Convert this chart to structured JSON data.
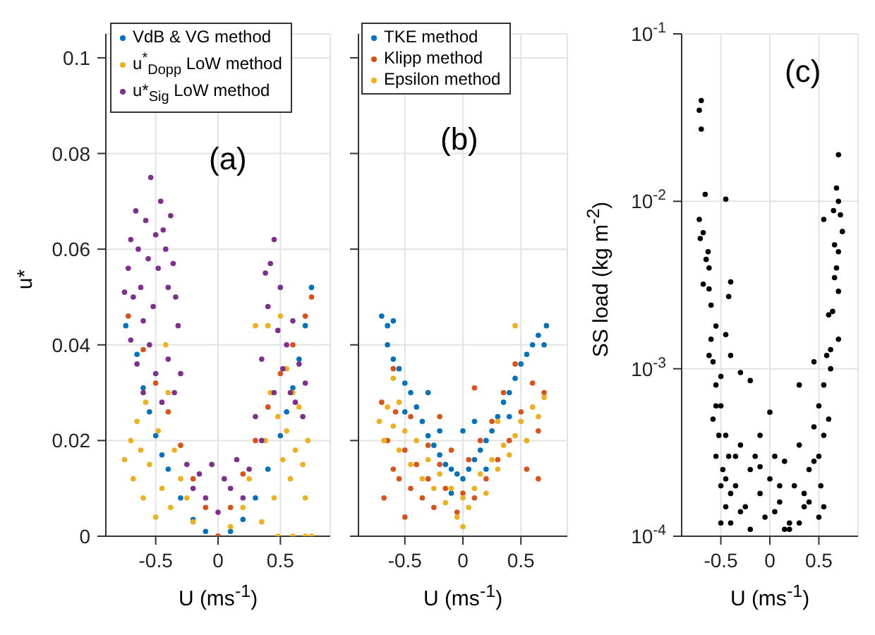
{
  "chart_data": [
    {
      "type": "scatter",
      "xlabel": "U (ms$^{-1}$)",
      "ylabel": "u*",
      "xlim": [
        -0.9,
        0.9
      ],
      "xticks": [
        -0.5,
        0,
        0.5
      ],
      "ylim": [
        0,
        0.105
      ],
      "yticks": [
        0,
        0.02,
        0.04,
        0.06,
        0.08,
        0.1
      ],
      "grid": true,
      "legend": "top left",
      "marker": "circle",
      "annotations": [
        "(a)"
      ],
      "series": [
        {
          "name": "VdB & VG method",
          "color": "#0072bd",
          "x": [
            -0.74,
            -0.65,
            -0.6,
            -0.55,
            -0.5,
            -0.45,
            -0.4,
            -0.3,
            -0.2,
            -0.1,
            0,
            0.1,
            0.2,
            0.3,
            0.4,
            0.5,
            0.55,
            0.6,
            0.65,
            0.7,
            0.75
          ],
          "values": [
            0.044,
            0.038,
            0.031,
            0.026,
            0.021,
            0.017,
            0.014,
            0.008,
            0.0035,
            0.001,
            0,
            0.001,
            0.0035,
            0.008,
            0.014,
            0.021,
            0.026,
            0.031,
            0.037,
            0.044,
            0.052
          ]
        },
        {
          "color": "#d95319",
          "x": [
            -0.72,
            -0.6,
            -0.5,
            -0.4,
            -0.3,
            -0.2,
            -0.1,
            0,
            0.1,
            0.2,
            0.3,
            0.4,
            0.5,
            0.6,
            0.7,
            0.75
          ],
          "values": [
            0.046,
            0.039,
            0.032,
            0.026,
            0.019,
            0.012,
            0.006,
            0,
            0.006,
            0.013,
            0.02,
            0.027,
            0.034,
            0.04,
            0.046,
            0.05
          ]
        },
        {
          "name": "u$^{*}$$_{Dopp}$ LoW method",
          "color": "#edb120",
          "x": [
            -0.75,
            -0.7,
            -0.68,
            -0.65,
            -0.62,
            -0.6,
            -0.58,
            -0.55,
            -0.5,
            -0.48,
            -0.45,
            -0.42,
            -0.4,
            -0.38,
            -0.35,
            -0.3,
            -0.25,
            -0.2,
            0.1,
            0.2,
            0.25,
            0.3,
            0.35,
            0.38,
            0.4,
            0.42,
            0.45,
            0.48,
            0.5,
            0.52,
            0.55,
            0.58,
            0.6,
            0.62,
            0.65,
            0.68,
            0.7,
            0.72,
            0.48,
            0.6,
            0.7,
            0.75,
            0.55
          ],
          "values": [
            0.016,
            0.02,
            0.012,
            0.024,
            0.018,
            0.008,
            0.028,
            0.015,
            0.004,
            0.022,
            0.01,
            0.04,
            0.03,
            0.006,
            0.018,
            0.012,
            0.008,
            0.003,
            0.002,
            0.006,
            0.012,
            0.044,
            0.003,
            0.02,
            0.044,
            0.03,
            0.008,
            0.025,
            0.046,
            0.016,
            0.022,
            0.012,
            0.03,
            0.018,
            0.027,
            0.015,
            0.008,
            0.02,
            0,
            0,
            0,
            0,
            0.035
          ]
        },
        {
          "name": "u*$_{Sig}$ LoW method",
          "color": "#7e2f8e",
          "x": [
            -0.75,
            -0.72,
            -0.7,
            -0.68,
            -0.66,
            -0.64,
            -0.62,
            -0.6,
            -0.58,
            -0.56,
            -0.54,
            -0.52,
            -0.5,
            -0.48,
            -0.46,
            -0.44,
            -0.42,
            -0.4,
            -0.38,
            -0.36,
            -0.34,
            -0.32,
            -0.7,
            -0.65,
            -0.6,
            -0.55,
            -0.5,
            -0.45,
            -0.4,
            -0.35,
            -0.3,
            -0.25,
            -0.2,
            -0.15,
            -0.1,
            -0.05,
            0,
            0.05,
            0.1,
            0.15,
            0.2,
            0.25,
            0.3,
            0.35,
            0.38,
            0.4,
            0.42,
            0.45,
            0.48,
            0.5,
            0.52,
            0.55,
            0.58,
            0.6,
            0.62,
            0.65,
            0.68,
            0.7,
            0.45,
            0.35
          ],
          "values": [
            0.051,
            0.056,
            0.062,
            0.05,
            0.068,
            0.06,
            0.052,
            0.045,
            0.066,
            0.058,
            0.075,
            0.048,
            0.063,
            0.056,
            0.07,
            0.064,
            0.06,
            0.052,
            0.067,
            0.057,
            0.05,
            0.044,
            0.041,
            0.036,
            0.03,
            0.04,
            0.034,
            0.028,
            0.037,
            0.03,
            0.034,
            0.015,
            0.01,
            0.013,
            0.008,
            0.015,
            0.005,
            0.012,
            0.01,
            0.016,
            0.008,
            0.014,
            0.025,
            0.037,
            0.055,
            0.048,
            0.057,
            0.062,
            0.043,
            0.052,
            0.035,
            0.04,
            0.03,
            0.045,
            0.028,
            0.036,
            0.025,
            0.032,
            0.03,
            0.02
          ]
        }
      ]
    },
    {
      "type": "scatter",
      "xlabel": "U (ms$^{-1}$)",
      "xlim": [
        -0.9,
        0.9
      ],
      "xticks": [
        -0.5,
        0,
        0.5
      ],
      "ylim": [
        0,
        0.105
      ],
      "yticks": [
        0,
        0.02,
        0.04,
        0.06,
        0.08,
        0.1
      ],
      "tick_labels": "x",
      "grid": true,
      "legend": "top left",
      "marker": "circle",
      "annotations": [
        "(b)"
      ],
      "series": [
        {
          "name": "TKE method",
          "color": "#0072bd",
          "x": [
            -0.7,
            -0.65,
            -0.6,
            -0.65,
            -0.6,
            -0.55,
            -0.5,
            -0.45,
            -0.4,
            -0.35,
            -0.3,
            -0.25,
            -0.2,
            -0.15,
            -0.1,
            -0.05,
            0,
            0.05,
            0.1,
            0.15,
            0.2,
            0.25,
            0.3,
            0.35,
            0.4,
            0.45,
            0.5,
            0.55,
            0.6,
            0.65,
            0.7,
            0.72,
            -0.3,
            -0.2,
            0,
            0.1,
            -0.5,
            0.4,
            -0.1,
            0.2
          ],
          "values": [
            0.046,
            0.044,
            0.045,
            0.04,
            0.037,
            0.035,
            0.032,
            0.03,
            0.027,
            0.024,
            0.021,
            0.019,
            0.017,
            0.015,
            0.014,
            0.013,
            0.012,
            0.014,
            0.016,
            0.018,
            0.02,
            0.022,
            0.025,
            0.028,
            0.03,
            0.033,
            0.036,
            0.038,
            0.04,
            0.042,
            0.04,
            0.044,
            0.03,
            0.022,
            0.022,
            0.024,
            0.026,
            0.025,
            0.009,
            0.014
          ]
        },
        {
          "name": "Klipp method",
          "color": "#d95319",
          "x": [
            -0.7,
            -0.68,
            -0.65,
            -0.6,
            -0.58,
            -0.55,
            -0.5,
            -0.5,
            -0.45,
            -0.45,
            -0.4,
            -0.35,
            -0.3,
            -0.3,
            -0.25,
            -0.2,
            -0.15,
            -0.1,
            -0.05,
            0,
            0.05,
            0.1,
            0.15,
            0.2,
            0.25,
            0.3,
            0.35,
            0.4,
            0.45,
            0.5,
            0.55,
            0.6,
            0.65,
            0.7,
            0.65,
            -0.2,
            0.1,
            -0.6
          ],
          "values": [
            0.028,
            0.008,
            0.02,
            0.014,
            0.026,
            0.012,
            0.004,
            0.018,
            0.01,
            0.025,
            0.015,
            0.008,
            0.019,
            0.012,
            0.006,
            0.015,
            0.01,
            0.018,
            0.005,
            0.009,
            0.016,
            0.008,
            0.02,
            0.012,
            0.024,
            0.016,
            0.03,
            0.02,
            0.036,
            0.026,
            0.014,
            0.032,
            0.022,
            0.03,
            0.012,
            0.025,
            0.031,
            0.035
          ]
        },
        {
          "name": "Epsilon method",
          "color": "#edb120",
          "x": [
            -0.72,
            -0.68,
            -0.65,
            -0.6,
            -0.55,
            -0.55,
            -0.5,
            -0.45,
            -0.4,
            -0.35,
            -0.3,
            -0.25,
            -0.2,
            -0.15,
            -0.1,
            -0.05,
            0,
            0,
            0.05,
            0.1,
            0.15,
            0.2,
            0.25,
            0.3,
            0.35,
            0.4,
            0.45,
            0.5,
            0.55,
            0.6,
            0.65,
            0.7,
            0.45,
            -0.6,
            0.3
          ],
          "values": [
            0.024,
            0.02,
            0.027,
            0.023,
            0.018,
            0.028,
            0.022,
            0.015,
            0.02,
            0.012,
            0.016,
            0.01,
            0.013,
            0.007,
            0.01,
            0.004,
            0.002,
            0.008,
            0.006,
            0.01,
            0.013,
            0.009,
            0.016,
            0.014,
            0.019,
            0.017,
            0.021,
            0.024,
            0.02,
            0.027,
            0.025,
            0.029,
            0.044,
            0.033,
            0.024
          ]
        }
      ]
    },
    {
      "type": "scatter",
      "xlabel": "U (ms$^{-1}$)",
      "ylabel": "SS load (kg m$^{-2}$)",
      "log": "y",
      "xlim": [
        -0.9,
        0.9
      ],
      "xticks": [
        -0.5,
        0,
        0.5
      ],
      "ylim": [
        0.0001,
        0.1
      ],
      "yticks": [
        {
          "value": 0.0001,
          "label": "10$^{-4}$"
        },
        {
          "value": 0.001,
          "label": "10$^{-3}$"
        },
        {
          "value": 0.01,
          "label": "10$^{-2}$"
        },
        {
          "value": 0.1,
          "label": "10$^{-1}$"
        }
      ],
      "grid": true,
      "marker": "circle",
      "annotations": [
        "(c)"
      ],
      "series": [
        {
          "color": "#000000",
          "x": [
            -0.72,
            -0.7,
            -0.7,
            -0.72,
            -0.71,
            -0.68,
            -0.66,
            -0.63,
            -0.65,
            -0.62,
            -0.68,
            -0.62,
            -0.6,
            -0.45,
            -0.4,
            -0.42,
            -0.55,
            -0.6,
            -0.62,
            -0.58,
            -0.45,
            -0.5,
            -0.4,
            -0.3,
            -0.2,
            -0.55,
            -0.5,
            -0.45,
            0.7,
            0.68,
            0.7,
            0.72,
            0.74,
            0.65,
            0.55,
            0.66,
            0.7,
            0.68,
            0.66,
            0.7,
            0.64,
            0.6,
            0.7,
            0.62,
            0.58,
            0.62,
            0.45,
            0.55,
            0.3,
            0.5,
            0.6,
            -0.58,
            -0.55,
            -0.52,
            -0.5,
            -0.48,
            -0.45,
            -0.42,
            -0.4,
            -0.35,
            -0.3,
            -0.25,
            -0.2,
            -0.15,
            -0.1,
            -0.05,
            0,
            0.05,
            0.1,
            0.15,
            0.2,
            0.25,
            0.3,
            0.35,
            0.4,
            0.45,
            0.5,
            0.52,
            0.55,
            -0.5,
            -0.4,
            -0.3,
            -0.2,
            -0.1,
            0,
            0.1,
            0.2,
            0.3,
            0.4,
            0.5,
            -0.55,
            -0.45,
            -0.35,
            0.35,
            0.45,
            0.55,
            -0.1,
            0.05,
            0.15
          ],
          "values": [
            0.035,
            0.04,
            0.027,
            0.0078,
            0.006,
            0.0065,
            0.011,
            0.005,
            0.0045,
            0.004,
            0.0032,
            0.003,
            0.0024,
            0.0103,
            0.0033,
            0.0027,
            0.0018,
            0.0015,
            0.0012,
            0.0011,
            0.0016,
            0.0009,
            0.0012,
            0.00095,
            0.00085,
            0.0008,
            0.0006,
            0.0004,
            0.019,
            0.012,
            0.01,
            0.0083,
            0.0066,
            0.0088,
            0.0078,
            0.0055,
            0.005,
            0.004,
            0.0035,
            0.0029,
            0.0022,
            0.0021,
            0.0015,
            0.0013,
            0.0012,
            0.001,
            0.0011,
            0.0008,
            0.0008,
            0.0006,
            0.0005,
            0.0005,
            0.0003,
            0.0004,
            0.0002,
            0.00025,
            0.00015,
            0.0003,
            0.00012,
            0.0002,
            0.00035,
            0.00015,
            0.00025,
            0.0003,
            0.00018,
            0.00013,
            0.00022,
            0.0003,
            0.00016,
            0.00028,
            0.00012,
            0.0002,
            0.00035,
            0.00015,
            0.00025,
            0.00045,
            0.0003,
            0.0002,
            0.00015,
            0.00012,
            0.00018,
            0.00014,
            0.00011,
            0.0004,
            0.00055,
            0.0002,
            0.00011,
            0.00012,
            0.00016,
            0.00013,
            0.0006,
            0.00022,
            0.0003,
            0.00018,
            0.00028,
            0.0004,
            0.00026,
            0.00014,
            0.00011
          ]
        }
      ]
    }
  ]
}
